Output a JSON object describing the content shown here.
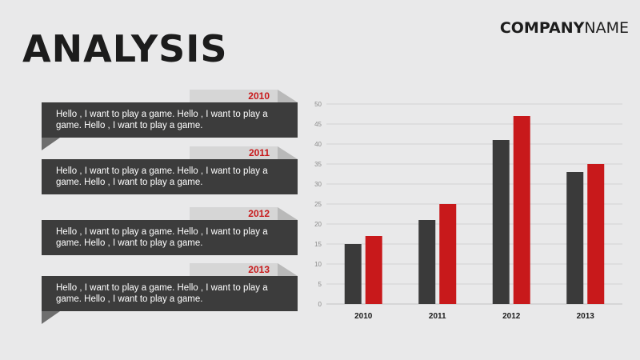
{
  "header": {
    "title": "ANALYSIS",
    "company_bold": "COMPANY",
    "company_light": "NAME"
  },
  "entries": [
    {
      "year": "2010",
      "text": "Hello , I want to play a game. Hello , I want to play a game. Hello , I want to play a game."
    },
    {
      "year": "2011",
      "text": "Hello , I want to play a game. Hello , I want to play a game. Hello , I want to play a game."
    },
    {
      "year": "2012",
      "text": "Hello , I want to play a game. Hello , I want to play a game. Hello , I want to play a game."
    },
    {
      "year": "2013",
      "text": "Hello , I want to play a game. Hello , I want to play a game. Hello , I want to play a game."
    }
  ],
  "colors": {
    "accent": "#c8191b",
    "dark": "#3c3c3c",
    "background": "#e9e9ea"
  },
  "chart_data": {
    "type": "bar",
    "categories": [
      "2010",
      "2011",
      "2012",
      "2013"
    ],
    "series": [
      {
        "values": [
          15,
          21,
          41,
          33
        ],
        "color": "#3a3a3a"
      },
      {
        "values": [
          17,
          25,
          47,
          35
        ],
        "color": "#c8191b"
      }
    ],
    "ylim": [
      0,
      50
    ],
    "yticks": [
      0,
      5,
      10,
      15,
      20,
      25,
      30,
      35,
      40,
      45,
      50
    ],
    "grid": true,
    "legend": "none"
  }
}
